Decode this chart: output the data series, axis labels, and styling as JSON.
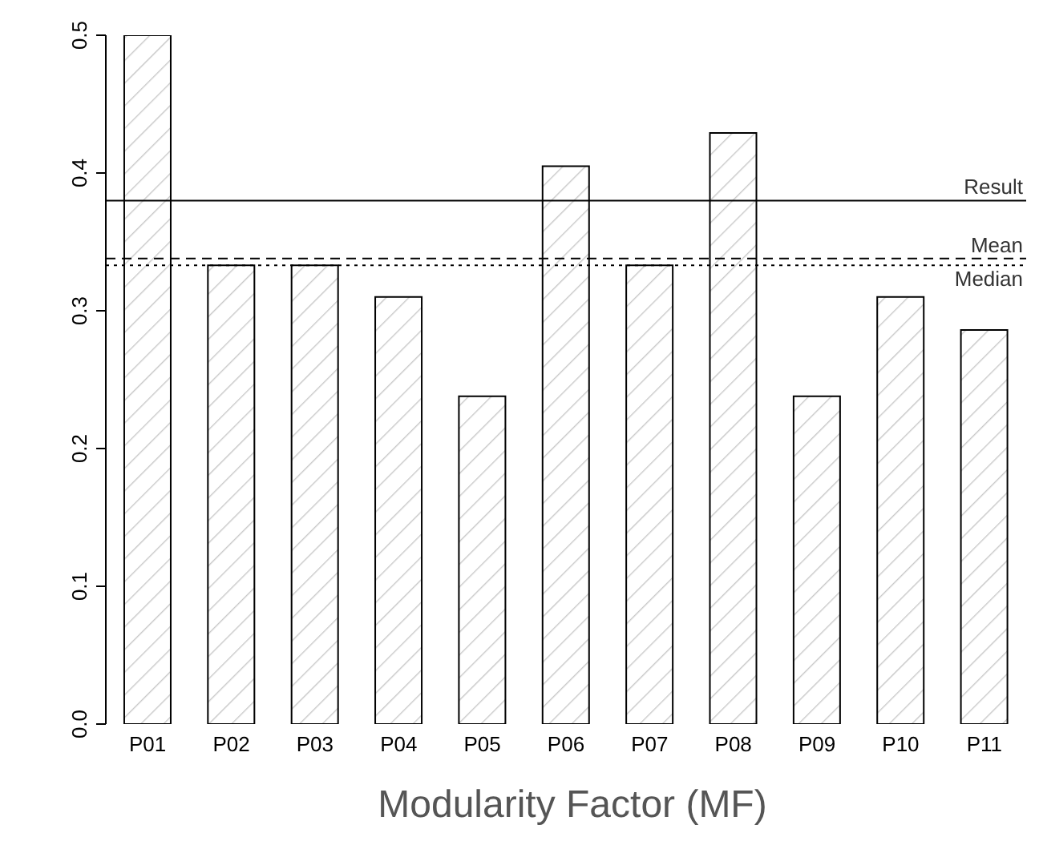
{
  "chart_data": {
    "type": "bar",
    "xlabel": "Modularity Factor (MF)",
    "categories": [
      "P01",
      "P02",
      "P03",
      "P04",
      "P05",
      "P06",
      "P07",
      "P08",
      "P09",
      "P10",
      "P11"
    ],
    "values": [
      0.5,
      0.333,
      0.333,
      0.31,
      0.238,
      0.405,
      0.333,
      0.429,
      0.238,
      0.31,
      0.286
    ],
    "color": "#000000",
    "ylim": [
      0,
      0.5
    ],
    "yticks": [
      {
        "value": 0,
        "label": "0.0"
      },
      {
        "value": 0.1,
        "label": "0.1"
      },
      {
        "value": 0.2,
        "label": "0.2"
      },
      {
        "value": 0.3,
        "label": "0.3"
      },
      {
        "value": 0.4,
        "label": "0.4"
      },
      {
        "value": 0.5,
        "label": "0.5"
      }
    ],
    "ref_lines": [
      {
        "axis": "y",
        "value": 0.38,
        "label": "Result",
        "color": "#000000",
        "line_style": "solid"
      },
      {
        "axis": "y",
        "value": 0.338,
        "label": "Mean",
        "color": "#000000",
        "line_style": "dashed"
      },
      {
        "axis": "y",
        "value": 0.333,
        "label": "Median",
        "color": "#000000",
        "line_style": "dotted"
      }
    ],
    "grid": false,
    "legend": false
  }
}
